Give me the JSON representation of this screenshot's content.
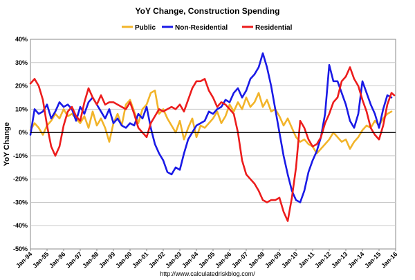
{
  "chart_data": {
    "type": "line",
    "title": "YoY Change,  Construction Spending",
    "ylabel": "YoY Change",
    "xlabel": "",
    "source": "http://www.calculatedriskblog.com/",
    "ylim": [
      -50,
      40
    ],
    "yticks": [
      "-50%",
      "-40%",
      "-30%",
      "-20%",
      "-10%",
      "0%",
      "10%",
      "20%",
      "30%",
      "40%"
    ],
    "yticks_values": [
      -50,
      -40,
      -30,
      -20,
      -10,
      0,
      10,
      20,
      30,
      40
    ],
    "xlim": [
      "1994-01",
      "2016-01"
    ],
    "xticks": [
      "Jan-94",
      "Jan-95",
      "Jan-96",
      "Jan-97",
      "Jan-98",
      "Jan-99",
      "Jan-00",
      "Jan-01",
      "Jan-02",
      "Jan-03",
      "Jan-04",
      "Jan-05",
      "Jan-06",
      "Jan-07",
      "Jan-08",
      "Jan-09",
      "Jan-10",
      "Jan-11",
      "Jan-12",
      "Jan-13",
      "Jan-14",
      "Jan-15",
      "Jan-16"
    ],
    "grid": true,
    "legend_position": "top",
    "series": [
      {
        "name": "Public",
        "color": "#f2b42a",
        "points": [
          [
            "1994-01",
            1
          ],
          [
            "1994-04",
            4
          ],
          [
            "1994-07",
            2
          ],
          [
            "1994-10",
            -1
          ],
          [
            "1995-01",
            3
          ],
          [
            "1995-04",
            5
          ],
          [
            "1995-07",
            8
          ],
          [
            "1995-10",
            6
          ],
          [
            "1996-01",
            10
          ],
          [
            "1996-04",
            7
          ],
          [
            "1996-07",
            8
          ],
          [
            "1996-10",
            6
          ],
          [
            "1997-01",
            4
          ],
          [
            "1997-04",
            7
          ],
          [
            "1997-07",
            2
          ],
          [
            "1997-10",
            9
          ],
          [
            "1998-01",
            3
          ],
          [
            "1998-04",
            6
          ],
          [
            "1998-07",
            2
          ],
          [
            "1998-10",
            -4
          ],
          [
            "1999-01",
            4
          ],
          [
            "1999-04",
            8
          ],
          [
            "1999-07",
            3
          ],
          [
            "1999-10",
            12
          ],
          [
            "2000-01",
            14
          ],
          [
            "2000-04",
            9
          ],
          [
            "2000-07",
            4
          ],
          [
            "2000-10",
            10
          ],
          [
            "2001-01",
            12
          ],
          [
            "2001-04",
            17
          ],
          [
            "2001-07",
            18
          ],
          [
            "2001-10",
            8
          ],
          [
            "2002-01",
            10
          ],
          [
            "2002-04",
            6
          ],
          [
            "2002-07",
            3
          ],
          [
            "2002-10",
            0
          ],
          [
            "2003-01",
            5
          ],
          [
            "2003-04",
            -3
          ],
          [
            "2003-07",
            2
          ],
          [
            "2003-10",
            6
          ],
          [
            "2004-01",
            -2
          ],
          [
            "2004-04",
            3
          ],
          [
            "2004-07",
            2
          ],
          [
            "2004-10",
            4
          ],
          [
            "2005-01",
            6
          ],
          [
            "2005-04",
            9
          ],
          [
            "2005-07",
            4
          ],
          [
            "2005-10",
            7
          ],
          [
            "2006-01",
            12
          ],
          [
            "2006-04",
            9
          ],
          [
            "2006-07",
            13
          ],
          [
            "2006-10",
            10
          ],
          [
            "2007-01",
            15
          ],
          [
            "2007-04",
            11
          ],
          [
            "2007-07",
            13
          ],
          [
            "2007-10",
            17
          ],
          [
            "2008-01",
            11
          ],
          [
            "2008-04",
            14
          ],
          [
            "2008-07",
            9
          ],
          [
            "2008-10",
            10
          ],
          [
            "2009-01",
            7
          ],
          [
            "2009-04",
            3
          ],
          [
            "2009-07",
            6
          ],
          [
            "2009-10",
            2
          ],
          [
            "2010-01",
            -2
          ],
          [
            "2010-04",
            -4
          ],
          [
            "2010-07",
            -3
          ],
          [
            "2010-10",
            -5
          ],
          [
            "2011-01",
            -6
          ],
          [
            "2011-04",
            -9
          ],
          [
            "2011-07",
            -7
          ],
          [
            "2011-10",
            -5
          ],
          [
            "2012-01",
            -3
          ],
          [
            "2012-04",
            0
          ],
          [
            "2012-07",
            -2
          ],
          [
            "2012-10",
            -4
          ],
          [
            "2013-01",
            -3
          ],
          [
            "2013-04",
            -7
          ],
          [
            "2013-07",
            -4
          ],
          [
            "2013-10",
            -2
          ],
          [
            "2014-01",
            1
          ],
          [
            "2014-04",
            3
          ],
          [
            "2014-07",
            2
          ],
          [
            "2014-10",
            5
          ],
          [
            "2015-01",
            3
          ],
          [
            "2015-04",
            6
          ],
          [
            "2015-07",
            8
          ],
          [
            "2015-10",
            9
          ]
        ]
      },
      {
        "name": "Non-Residential",
        "color": "#1a1ae6",
        "points": [
          [
            "1994-01",
            -1
          ],
          [
            "1994-04",
            10
          ],
          [
            "1994-07",
            8
          ],
          [
            "1994-10",
            9
          ],
          [
            "1995-01",
            12
          ],
          [
            "1995-04",
            6
          ],
          [
            "1995-07",
            9
          ],
          [
            "1995-10",
            13
          ],
          [
            "1996-01",
            11
          ],
          [
            "1996-04",
            12
          ],
          [
            "1996-07",
            10
          ],
          [
            "1996-10",
            5
          ],
          [
            "1997-01",
            11
          ],
          [
            "1997-04",
            8
          ],
          [
            "1997-07",
            13
          ],
          [
            "1997-10",
            15
          ],
          [
            "1998-01",
            12
          ],
          [
            "1998-04",
            9
          ],
          [
            "1998-07",
            6
          ],
          [
            "1998-10",
            10
          ],
          [
            "1999-01",
            4
          ],
          [
            "1999-04",
            6
          ],
          [
            "1999-07",
            3
          ],
          [
            "1999-10",
            2
          ],
          [
            "2000-01",
            4
          ],
          [
            "2000-04",
            3
          ],
          [
            "2000-07",
            8
          ],
          [
            "2000-10",
            6
          ],
          [
            "2001-01",
            11
          ],
          [
            "2001-04",
            2
          ],
          [
            "2001-07",
            -5
          ],
          [
            "2001-10",
            -9
          ],
          [
            "2002-01",
            -12
          ],
          [
            "2002-04",
            -17
          ],
          [
            "2002-07",
            -18
          ],
          [
            "2002-10",
            -15
          ],
          [
            "2003-01",
            -16
          ],
          [
            "2003-04",
            -9
          ],
          [
            "2003-07",
            -3
          ],
          [
            "2003-10",
            0
          ],
          [
            "2004-01",
            3
          ],
          [
            "2004-04",
            4
          ],
          [
            "2004-07",
            5
          ],
          [
            "2004-10",
            9
          ],
          [
            "2005-01",
            8
          ],
          [
            "2005-04",
            10
          ],
          [
            "2005-07",
            11
          ],
          [
            "2005-10",
            14
          ],
          [
            "2006-01",
            13
          ],
          [
            "2006-04",
            17
          ],
          [
            "2006-07",
            19
          ],
          [
            "2006-10",
            15
          ],
          [
            "2007-01",
            18
          ],
          [
            "2007-04",
            23
          ],
          [
            "2007-07",
            25
          ],
          [
            "2007-10",
            28
          ],
          [
            "2008-01",
            34
          ],
          [
            "2008-04",
            28
          ],
          [
            "2008-07",
            20
          ],
          [
            "2008-10",
            10
          ],
          [
            "2009-01",
            0
          ],
          [
            "2009-04",
            -10
          ],
          [
            "2009-07",
            -18
          ],
          [
            "2009-10",
            -25
          ],
          [
            "2010-01",
            -29
          ],
          [
            "2010-04",
            -30
          ],
          [
            "2010-07",
            -25
          ],
          [
            "2010-10",
            -17
          ],
          [
            "2011-01",
            -12
          ],
          [
            "2011-04",
            -8
          ],
          [
            "2011-07",
            -2
          ],
          [
            "2011-10",
            8
          ],
          [
            "2012-01",
            29
          ],
          [
            "2012-04",
            22
          ],
          [
            "2012-07",
            22
          ],
          [
            "2012-10",
            17
          ],
          [
            "2013-01",
            12
          ],
          [
            "2013-04",
            5
          ],
          [
            "2013-07",
            2
          ],
          [
            "2013-10",
            8
          ],
          [
            "2014-01",
            22
          ],
          [
            "2014-04",
            17
          ],
          [
            "2014-07",
            12
          ],
          [
            "2014-10",
            8
          ],
          [
            "2015-01",
            2
          ],
          [
            "2015-04",
            10
          ],
          [
            "2015-07",
            16
          ],
          [
            "2015-10",
            15
          ]
        ]
      },
      {
        "name": "Residential",
        "color": "#ec1c1c",
        "points": [
          [
            "1994-01",
            21
          ],
          [
            "1994-04",
            23
          ],
          [
            "1994-07",
            20
          ],
          [
            "1994-10",
            14
          ],
          [
            "1995-01",
            3
          ],
          [
            "1995-04",
            -6
          ],
          [
            "1995-07",
            -10
          ],
          [
            "1995-10",
            -6
          ],
          [
            "1996-01",
            3
          ],
          [
            "1996-04",
            9
          ],
          [
            "1996-07",
            11
          ],
          [
            "1996-10",
            7
          ],
          [
            "1997-01",
            5
          ],
          [
            "1997-04",
            13
          ],
          [
            "1997-07",
            19
          ],
          [
            "1997-10",
            15
          ],
          [
            "1998-01",
            12
          ],
          [
            "1998-04",
            16
          ],
          [
            "1998-07",
            12
          ],
          [
            "1998-10",
            13
          ],
          [
            "1999-01",
            13
          ],
          [
            "1999-04",
            12
          ],
          [
            "1999-07",
            11
          ],
          [
            "1999-10",
            10
          ],
          [
            "2000-01",
            13
          ],
          [
            "2000-04",
            8
          ],
          [
            "2000-07",
            2
          ],
          [
            "2000-10",
            0
          ],
          [
            "2001-01",
            -2
          ],
          [
            "2001-04",
            4
          ],
          [
            "2001-07",
            7
          ],
          [
            "2001-10",
            10
          ],
          [
            "2002-01",
            9
          ],
          [
            "2002-04",
            10
          ],
          [
            "2002-07",
            11
          ],
          [
            "2002-10",
            10
          ],
          [
            "2003-01",
            12
          ],
          [
            "2003-04",
            9
          ],
          [
            "2003-07",
            14
          ],
          [
            "2003-10",
            19
          ],
          [
            "2004-01",
            22
          ],
          [
            "2004-04",
            22
          ],
          [
            "2004-07",
            23
          ],
          [
            "2004-10",
            18
          ],
          [
            "2005-01",
            15
          ],
          [
            "2005-04",
            11
          ],
          [
            "2005-07",
            13
          ],
          [
            "2005-10",
            12
          ],
          [
            "2006-01",
            10
          ],
          [
            "2006-04",
            8
          ],
          [
            "2006-07",
            0
          ],
          [
            "2006-10",
            -12
          ],
          [
            "2007-01",
            -18
          ],
          [
            "2007-04",
            -20
          ],
          [
            "2007-07",
            -22
          ],
          [
            "2007-10",
            -25
          ],
          [
            "2008-01",
            -29
          ],
          [
            "2008-04",
            -30
          ],
          [
            "2008-07",
            -29
          ],
          [
            "2008-10",
            -29
          ],
          [
            "2009-01",
            -28
          ],
          [
            "2009-04",
            -34
          ],
          [
            "2009-07",
            -38
          ],
          [
            "2009-10",
            -28
          ],
          [
            "2010-01",
            -15
          ],
          [
            "2010-04",
            5
          ],
          [
            "2010-07",
            2
          ],
          [
            "2010-10",
            -3
          ],
          [
            "2011-01",
            -6
          ],
          [
            "2011-04",
            -5
          ],
          [
            "2011-07",
            -2
          ],
          [
            "2011-10",
            4
          ],
          [
            "2012-01",
            8
          ],
          [
            "2012-04",
            13
          ],
          [
            "2012-07",
            15
          ],
          [
            "2012-10",
            22
          ],
          [
            "2013-01",
            24
          ],
          [
            "2013-04",
            28
          ],
          [
            "2013-07",
            23
          ],
          [
            "2013-10",
            20
          ],
          [
            "2014-01",
            14
          ],
          [
            "2014-04",
            9
          ],
          [
            "2014-07",
            2
          ],
          [
            "2014-10",
            -1
          ],
          [
            "2015-01",
            -3
          ],
          [
            "2015-04",
            3
          ],
          [
            "2015-07",
            12
          ],
          [
            "2015-10",
            17
          ],
          [
            "2015-12",
            16
          ]
        ]
      }
    ]
  }
}
